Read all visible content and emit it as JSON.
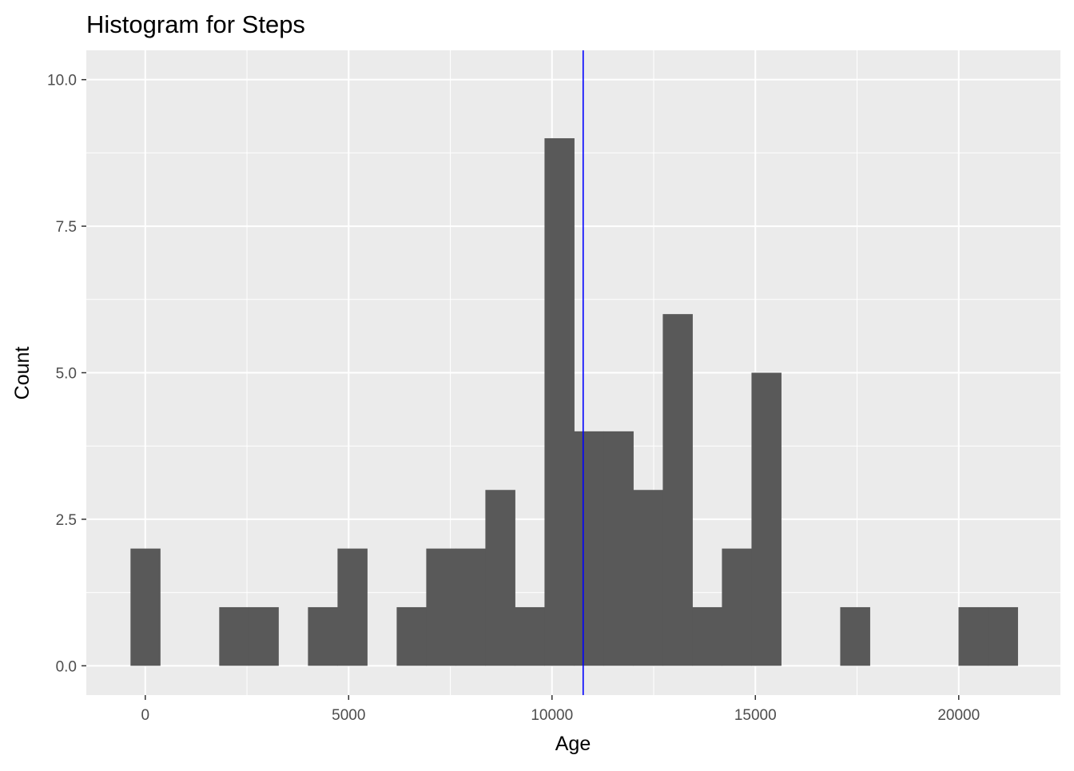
{
  "chart_data": {
    "type": "bar",
    "subtype": "histogram",
    "title": "Histogram for Steps",
    "xlabel": "Age",
    "ylabel": "Count",
    "xlim": [
      -1450,
      22500
    ],
    "ylim": [
      -0.5,
      10.5
    ],
    "x_ticks": [
      0,
      5000,
      10000,
      15000,
      20000
    ],
    "x_tick_labels": [
      "0",
      "5000",
      "10000",
      "15000",
      "20000"
    ],
    "y_ticks": [
      0,
      2.5,
      5,
      7.5,
      10
    ],
    "y_tick_labels": [
      "0.0",
      "2.5",
      "5.0",
      "7.5",
      "10.0"
    ],
    "bin_width": 727,
    "bins": [
      {
        "start": -363,
        "end": 364,
        "count": 2
      },
      {
        "start": 1818,
        "end": 2545,
        "count": 1
      },
      {
        "start": 2545,
        "end": 3272,
        "count": 1
      },
      {
        "start": 4000,
        "end": 4727,
        "count": 1
      },
      {
        "start": 4727,
        "end": 5454,
        "count": 2
      },
      {
        "start": 6181,
        "end": 6908,
        "count": 1
      },
      {
        "start": 6908,
        "end": 7635,
        "count": 2
      },
      {
        "start": 7635,
        "end": 8362,
        "count": 2
      },
      {
        "start": 8362,
        "end": 9089,
        "count": 3
      },
      {
        "start": 9089,
        "end": 9816,
        "count": 1
      },
      {
        "start": 9816,
        "end": 10543,
        "count": 9
      },
      {
        "start": 10543,
        "end": 11270,
        "count": 4
      },
      {
        "start": 11270,
        "end": 11997,
        "count": 4
      },
      {
        "start": 11997,
        "end": 12724,
        "count": 3
      },
      {
        "start": 12724,
        "end": 13451,
        "count": 6
      },
      {
        "start": 13451,
        "end": 14178,
        "count": 1
      },
      {
        "start": 14178,
        "end": 14905,
        "count": 2
      },
      {
        "start": 14905,
        "end": 15632,
        "count": 5
      },
      {
        "start": 17086,
        "end": 17813,
        "count": 1
      },
      {
        "start": 19994,
        "end": 20721,
        "count": 1
      },
      {
        "start": 20721,
        "end": 21448,
        "count": 1
      }
    ],
    "vline": {
      "x": 10766,
      "color": "#0000ff"
    },
    "bar_color": "#595959",
    "panel_background": "#ebebeb",
    "grid": true,
    "grid_color": "#ffffff"
  }
}
